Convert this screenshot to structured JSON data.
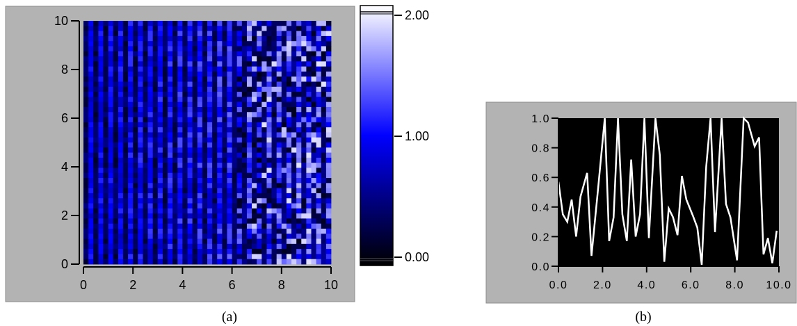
{
  "captions": {
    "a": "(a)",
    "b": "(b)"
  },
  "colors": {
    "panel": "#b3b3b3",
    "plot_bg": "#000000",
    "line": "#ffffff",
    "low": "#000000",
    "mid": "#0000ff",
    "high": "#ffffff"
  },
  "chart_data": [
    {
      "type": "heatmap",
      "title": "",
      "xlabel": "",
      "ylabel": "",
      "xlim": [
        0,
        10
      ],
      "ylim": [
        0,
        10
      ],
      "x_ticks": [
        "0",
        "2",
        "4",
        "6",
        "8",
        "10"
      ],
      "y_ticks": [
        "0",
        "2",
        "4",
        "6",
        "8",
        "10"
      ],
      "grid": false,
      "colormap": "black-blue-white",
      "colorbar": {
        "range": [
          0,
          2
        ],
        "ticks": [
          "0.00",
          "1.00",
          "2.00"
        ]
      },
      "grid_size": [
        50,
        48
      ],
      "pattern": "alternating dark/bright vertical stripes, brighter and noisier toward high x"
    },
    {
      "type": "line",
      "title": "",
      "xlabel": "",
      "ylabel": "",
      "xlim": [
        0,
        10
      ],
      "ylim": [
        0,
        1
      ],
      "grid": false,
      "x_ticks": [
        "0.0",
        "2.0",
        "4.0",
        "6.0",
        "8.0",
        "10.0"
      ],
      "y_ticks": [
        "0.0",
        "0.2",
        "0.4",
        "0.6",
        "0.8",
        "1.0"
      ],
      "series": [
        {
          "x": [
            0.0,
            0.2,
            0.4,
            0.6,
            0.8,
            1.0,
            1.3,
            1.5,
            1.8,
            2.1,
            2.3,
            2.5,
            2.7,
            2.9,
            3.1,
            3.3,
            3.5,
            3.7,
            3.9,
            4.1,
            4.4,
            4.6,
            4.8,
            5.0,
            5.2,
            5.4,
            5.6,
            5.8,
            6.1,
            6.3,
            6.5,
            6.7,
            6.9,
            7.1,
            7.4,
            7.6,
            7.8,
            8.1,
            8.4,
            8.6,
            8.9,
            9.1,
            9.3,
            9.5,
            9.7,
            9.9
          ],
          "y": [
            0.57,
            0.35,
            0.3,
            0.45,
            0.2,
            0.47,
            0.63,
            0.07,
            0.53,
            1.0,
            0.17,
            0.33,
            1.0,
            0.35,
            0.17,
            0.72,
            0.2,
            0.35,
            1.0,
            0.19,
            1.0,
            0.75,
            0.03,
            0.39,
            0.33,
            0.21,
            0.61,
            0.45,
            0.34,
            0.26,
            0.01,
            0.67,
            1.0,
            0.23,
            1.0,
            0.42,
            0.33,
            0.04,
            1.0,
            0.97,
            0.81,
            0.87,
            0.08,
            0.19,
            0.02,
            0.24
          ]
        }
      ]
    }
  ]
}
